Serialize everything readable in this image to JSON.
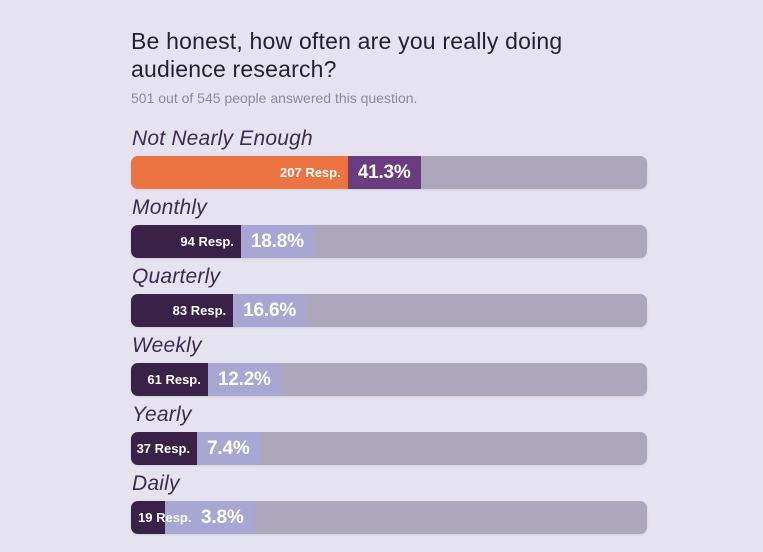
{
  "page": {
    "background": "#E4E3EF"
  },
  "chart_data": {
    "type": "bar",
    "orientation": "horizontal",
    "title": "Be honest, how often are you really doing audience research?",
    "subtitle": "501 out of 545 people answered this question.",
    "answered": 501,
    "total_people": 545,
    "unit": "Resp.",
    "xlim": [
      0,
      100
    ],
    "grid": false,
    "legend": null,
    "track_color": "#ADA7BC",
    "categories": [
      "Not Nearly Enough",
      "Monthly",
      "Quarterly",
      "Weekly",
      "Yearly",
      "Daily"
    ],
    "values": [
      41.3,
      18.8,
      16.6,
      12.2,
      7.4,
      3.8
    ],
    "bars": [
      {
        "category": "Not Nearly Enough",
        "responses": 207,
        "percent": 41.3,
        "resp_label": "207 Resp.",
        "pct_label": "41.3%",
        "bar_color": "#EC7441",
        "box_color": "#6A3B7F",
        "width": "42%"
      },
      {
        "category": "Monthly",
        "responses": 94,
        "percent": 18.8,
        "resp_label": "94 Resp.",
        "pct_label": "18.8%",
        "bar_color": "#3A2147",
        "box_color": "#A8A7D3",
        "width": "21.3%"
      },
      {
        "category": "Quarterly",
        "responses": 83,
        "percent": 16.6,
        "resp_label": "83 Resp.",
        "pct_label": "16.6%",
        "bar_color": "#3A2147",
        "box_color": "#A8A7D3",
        "width": "19.8%"
      },
      {
        "category": "Weekly",
        "responses": 61,
        "percent": 12.2,
        "resp_label": "61 Resp.",
        "pct_label": "12.2%",
        "bar_color": "#3A2147",
        "box_color": "#A8A7D3",
        "width": "14.9%"
      },
      {
        "category": "Yearly",
        "responses": 37,
        "percent": 7.4,
        "resp_label": "37 Resp.",
        "pct_label": "7.4%",
        "bar_color": "#3A2147",
        "box_color": "#A8A7D3",
        "width": "12.8%"
      },
      {
        "category": "Daily",
        "responses": 19,
        "percent": 3.8,
        "resp_label": "19 Resp.",
        "pct_label": "3.8%",
        "bar_color": "#3A2147",
        "box_color": "#A8A7D3",
        "width": "6.6%"
      }
    ]
  }
}
